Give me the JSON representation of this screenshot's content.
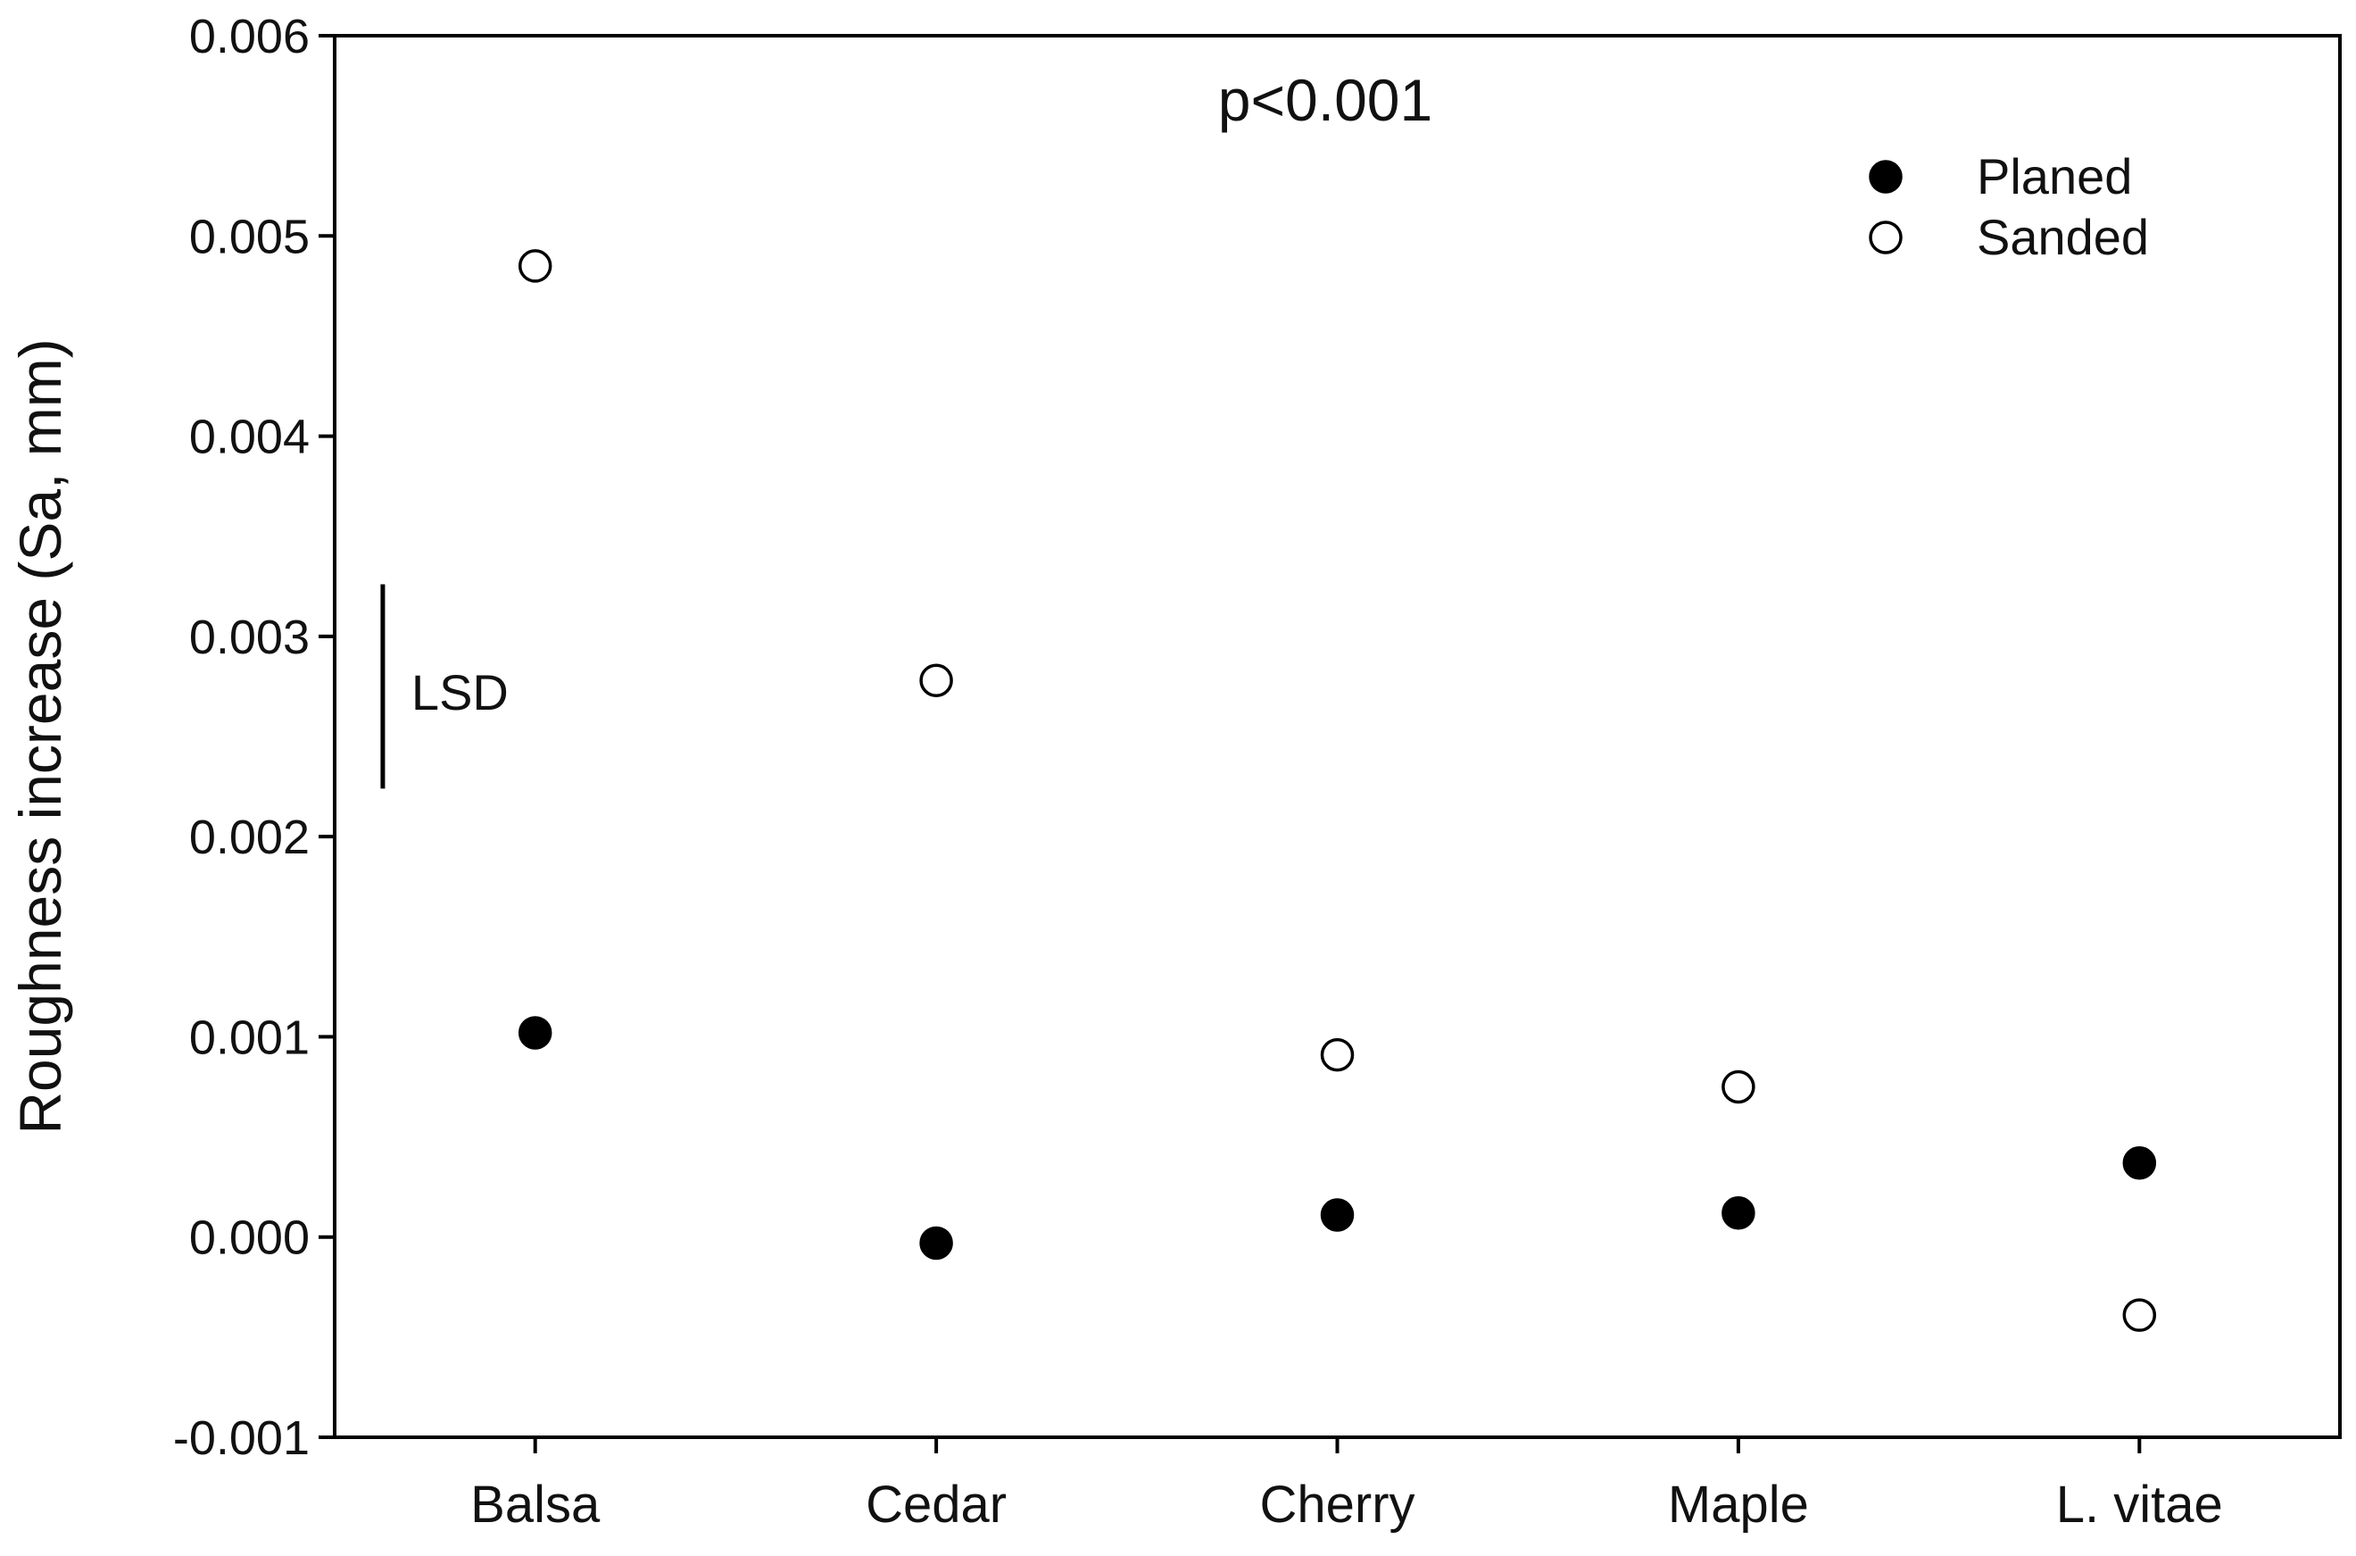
{
  "chart_data": {
    "type": "scatter",
    "title": "",
    "xlabel": "",
    "ylabel": "Roughness increase (Sa, mm)",
    "categories": [
      "Balsa",
      "Cedar",
      "Cherry",
      "Maple",
      "L. vitae"
    ],
    "ylim": [
      -0.001,
      0.006
    ],
    "yticks": [
      "-0.001",
      "0.000",
      "0.001",
      "0.002",
      "0.003",
      "0.004",
      "0.005",
      "0.006"
    ],
    "grid": false,
    "legend_position": "top-right",
    "series": [
      {
        "name": "Planed",
        "marker": "filled-circle",
        "color": "#000000",
        "values": [
          0.00102,
          -3e-05,
          0.00011,
          0.00012,
          0.00037
        ]
      },
      {
        "name": "Sanded",
        "marker": "open-circle",
        "color": "#000000",
        "values": [
          0.00485,
          0.00278,
          0.00091,
          0.00075,
          -0.00039
        ]
      }
    ],
    "annotations": {
      "p_value": "p<0.001",
      "lsd_label": "LSD",
      "lsd_range": [
        0.00224,
        0.00326
      ],
      "lsd_category_position": 0.12
    }
  }
}
